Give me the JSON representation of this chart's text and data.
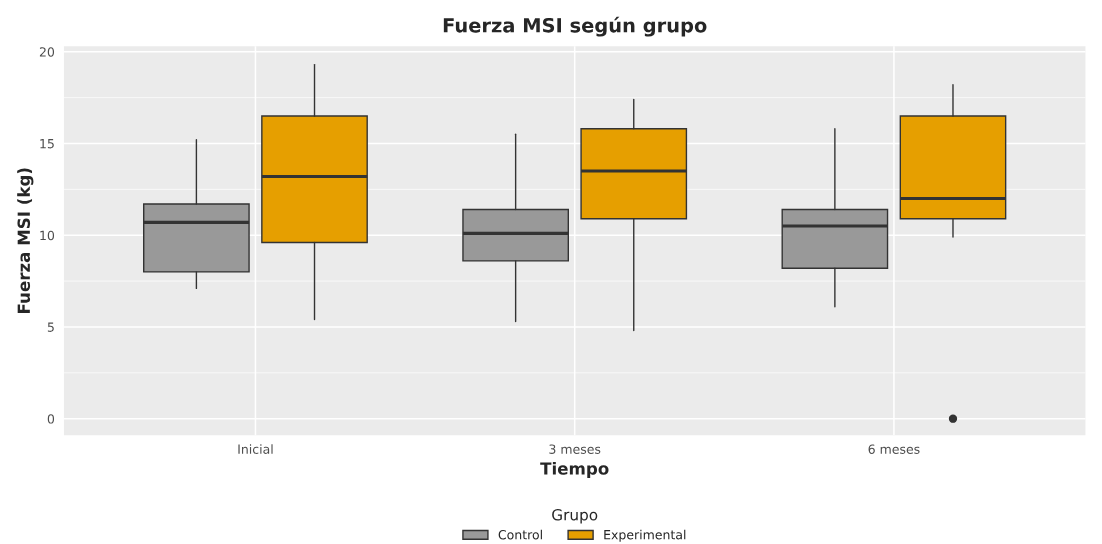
{
  "chart_data": {
    "type": "box",
    "title": "Fuerza MSI según grupo",
    "xlabel": "Tiempo",
    "ylabel": "Fuerza MSI (kg)",
    "legend_title": "Grupo",
    "categories": [
      "Inicial",
      "3 meses",
      "6 meses"
    ],
    "series": [
      {
        "name": "Control",
        "color": "#999999",
        "boxes": [
          {
            "low": 7.1,
            "q1": 8.0,
            "median": 10.7,
            "q3": 11.7,
            "high": 15.2
          },
          {
            "low": 5.3,
            "q1": 8.6,
            "median": 10.1,
            "q3": 11.4,
            "high": 15.5
          },
          {
            "low": 6.1,
            "q1": 8.2,
            "median": 10.5,
            "q3": 11.4,
            "high": 15.8
          }
        ]
      },
      {
        "name": "Experimental",
        "color": "#e69f00",
        "boxes": [
          {
            "low": 5.4,
            "q1": 9.6,
            "median": 13.2,
            "q3": 16.5,
            "high": 19.3
          },
          {
            "low": 4.8,
            "q1": 10.9,
            "median": 13.5,
            "q3": 15.8,
            "high": 17.4
          },
          {
            "low": 9.9,
            "q1": 10.9,
            "median": 12.0,
            "q3": 16.5,
            "high": 18.2,
            "outliers": [
              0
            ]
          }
        ]
      }
    ],
    "ylim": [
      -0.9,
      20.3
    ],
    "yticks": [
      0,
      5,
      10,
      15,
      20
    ],
    "grid": true,
    "legend": "bottom"
  }
}
